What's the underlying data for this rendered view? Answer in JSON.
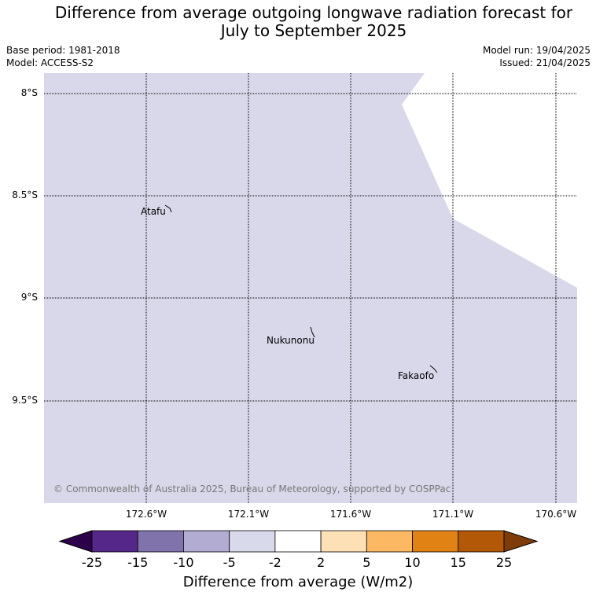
{
  "title_lines": [
    "Difference from average outgoing longwave radiation forecast for",
    "July to September 2025"
  ],
  "meta": {
    "base_period": "Base period: 1981-2018",
    "model": "Model: ACCESS-S2",
    "model_run": "Model run: 19/04/2025",
    "issued": "Issued: 21/04/2025"
  },
  "map": {
    "lat_labels": [
      "8°S",
      "8.5°S",
      "9°S",
      "9.5°S"
    ],
    "lon_labels": [
      "172.6°W",
      "172.1°W",
      "171.6°W",
      "171.1°W",
      "170.6°W"
    ],
    "fill_color_main": "#d8d8ea",
    "fill_color_neutral": "#ffffff",
    "places": [
      {
        "name": "Atafu"
      },
      {
        "name": "Nukunonu"
      },
      {
        "name": "Fakaofo"
      }
    ],
    "copyright": "© Commonwealth of Australia 2025, Bureau of Meteorology, supported by COSPPac"
  },
  "colorbar": {
    "ticks": [
      "-25",
      "-15",
      "-10",
      "-5",
      "-2",
      "2",
      "5",
      "10",
      "15",
      "25"
    ],
    "colors": [
      "#542788",
      "#8073ac",
      "#b2abd2",
      "#d8daeb",
      "#ffffff",
      "#fee0b6",
      "#fdb863",
      "#e08214",
      "#b35806"
    ],
    "under_color": "#2d004b",
    "over_color": "#7f3b08",
    "label": "Difference from average (W/m2)"
  }
}
